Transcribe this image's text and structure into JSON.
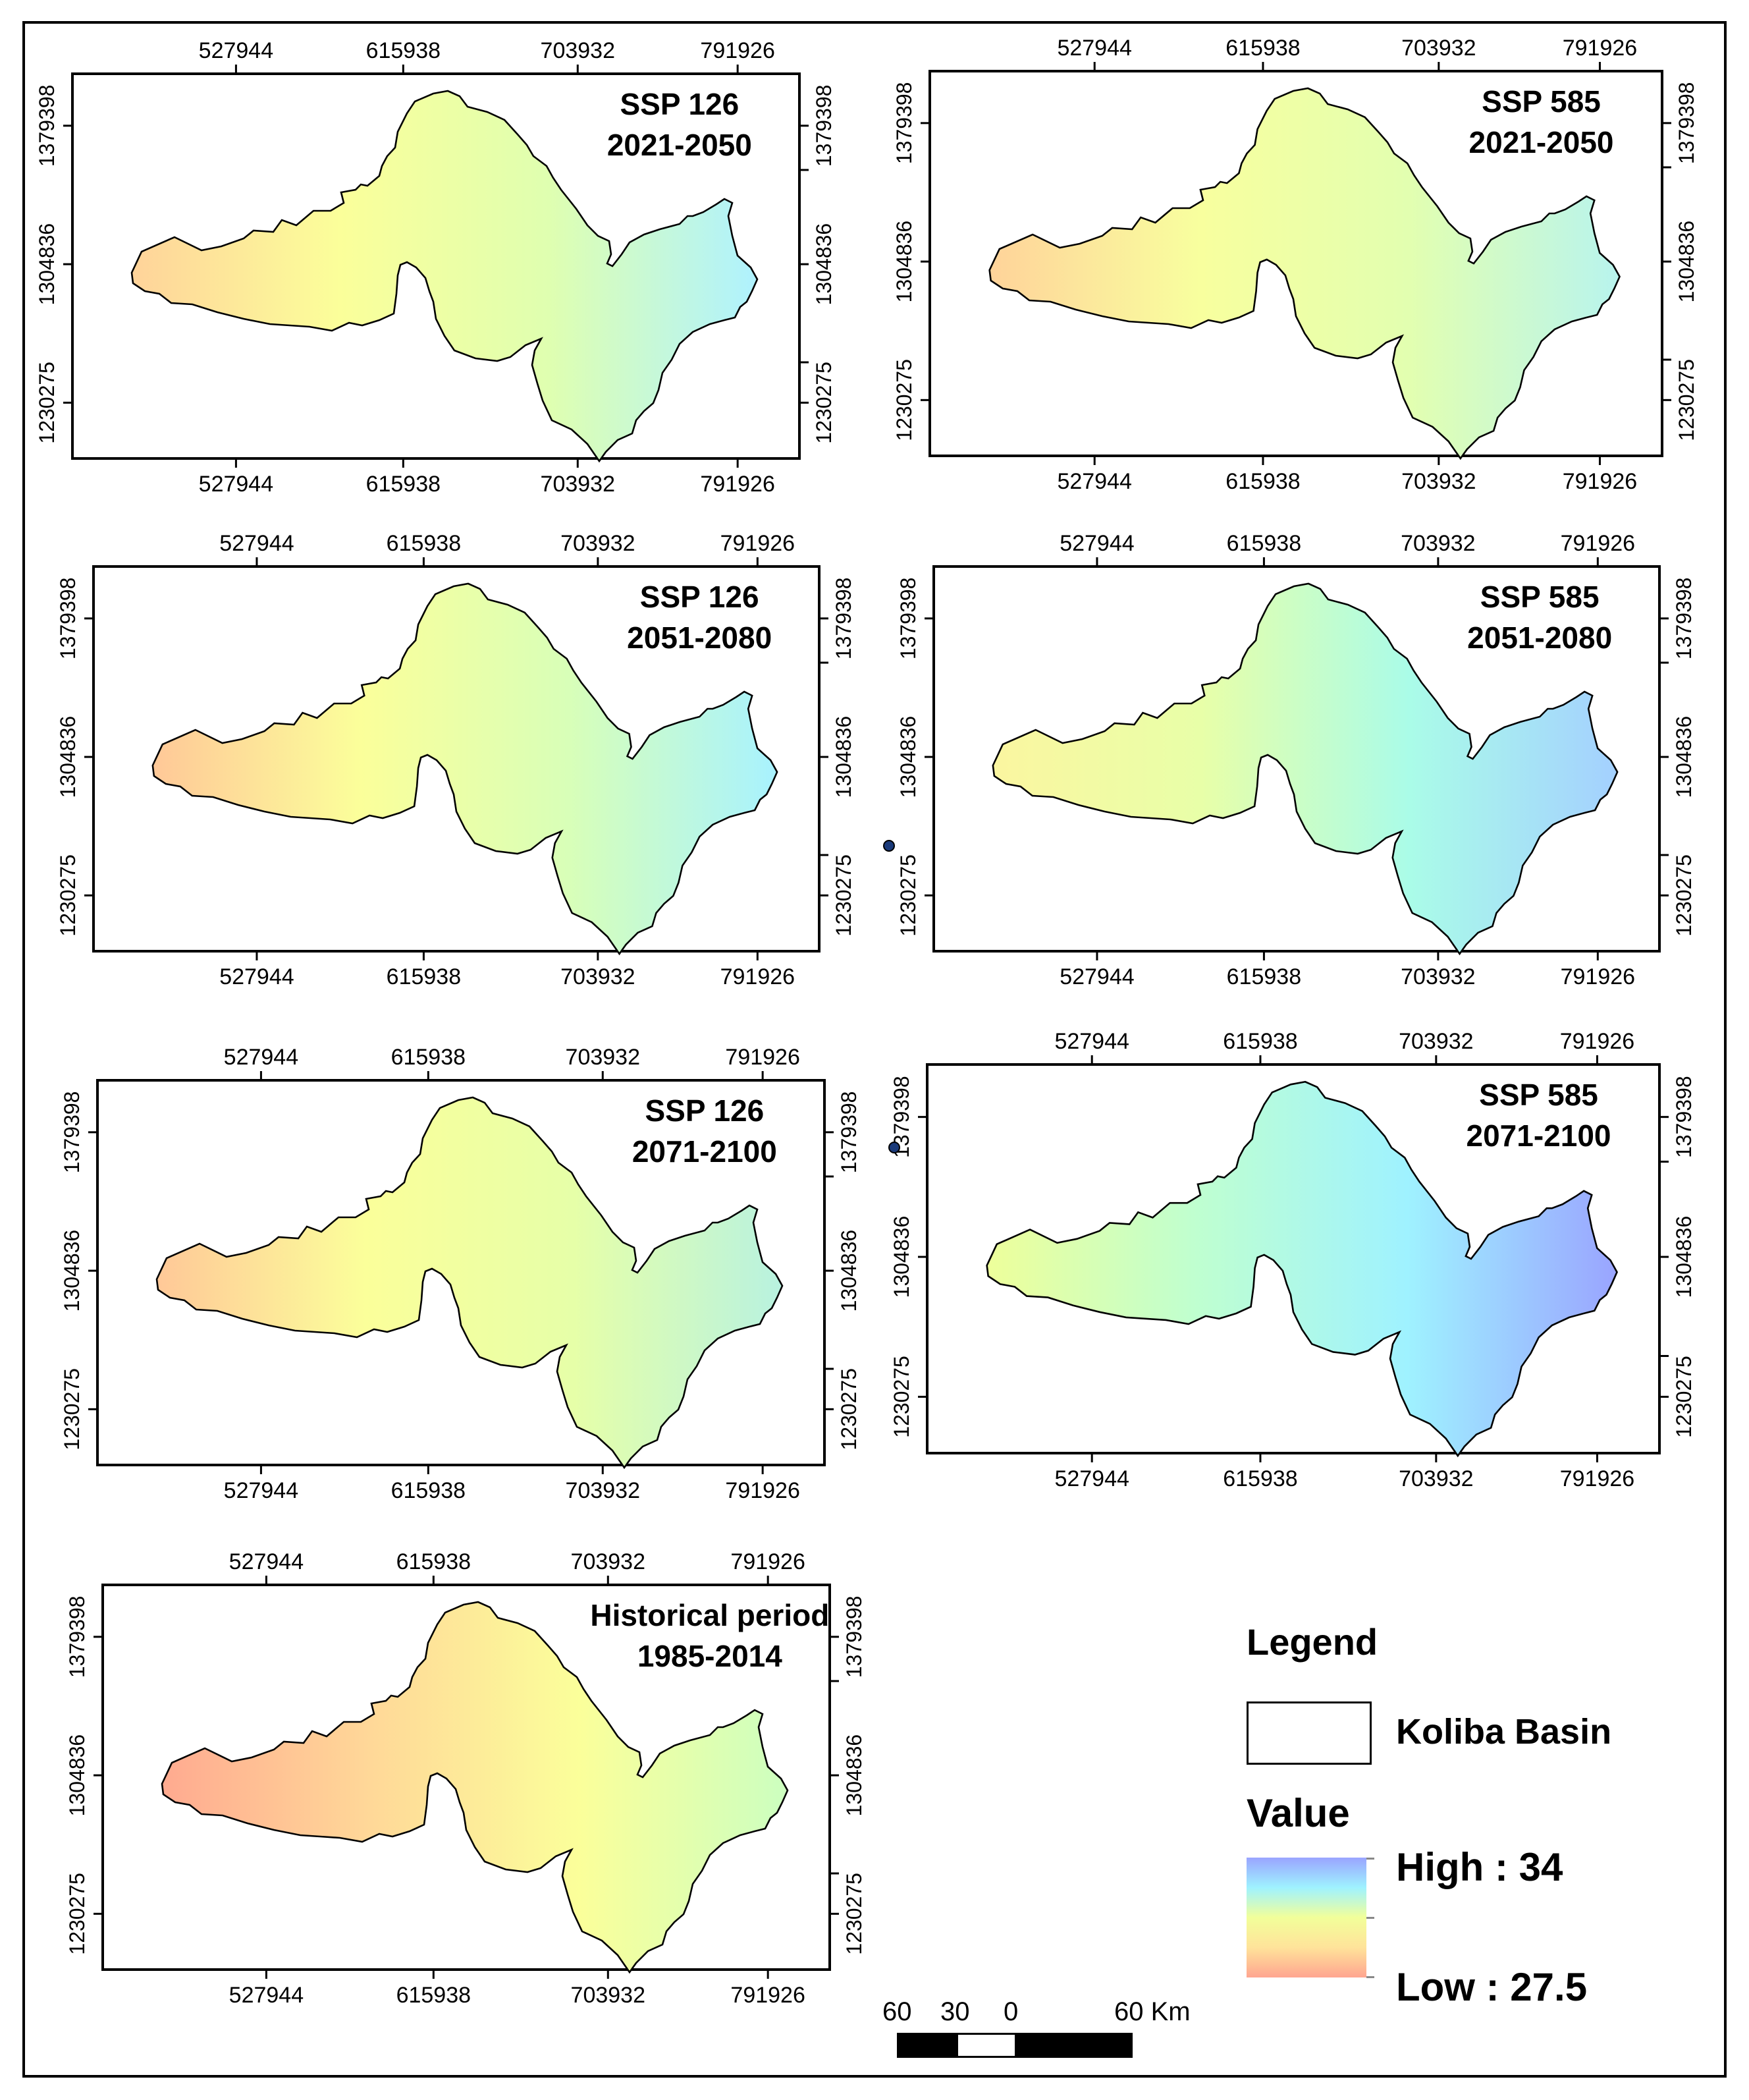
{
  "x_ticks": [
    "527944",
    "615938",
    "703932",
    "791926"
  ],
  "y_ticks": [
    "1379398",
    "1304836",
    "1230275"
  ],
  "panels": [
    {
      "scenario": "SSP 126",
      "period": "2021-2050",
      "stops": [
        "#ffd39a",
        "#fbff9a",
        "#dfffb0",
        "#aff2ff"
      ]
    },
    {
      "scenario": "SSP 585",
      "period": "2021-2050",
      "stops": [
        "#ffd39a",
        "#f8ff9e",
        "#e2ffb0",
        "#b8f4ee"
      ]
    },
    {
      "scenario": "SSP 126",
      "period": "2051-2080",
      "stops": [
        "#ffc898",
        "#fbff9a",
        "#d8ffb8",
        "#a8f2ff"
      ]
    },
    {
      "scenario": "SSP 585",
      "period": "2051-2080",
      "stops": [
        "#fbf6a0",
        "#e8ffa8",
        "#aafce8",
        "#a4d0ff"
      ]
    },
    {
      "scenario": "SSP 126",
      "period": "2071-2100",
      "stops": [
        "#ffc898",
        "#fbff9a",
        "#e6ffa8",
        "#b8f2e0"
      ]
    },
    {
      "scenario": "SSP 585",
      "period": "2071-2100",
      "stops": [
        "#eeff9a",
        "#bfffd0",
        "#9ff2ff",
        "#9aa4ff"
      ]
    },
    {
      "scenario": "Historical period",
      "period": "1985-2014",
      "stops": [
        "#ffaa90",
        "#ffd898",
        "#fbff9a",
        "#ccffc0"
      ]
    }
  ],
  "legend": {
    "title": "Legend",
    "basin_label": "Koliba Basin",
    "value_title": "Value",
    "high_label": "High : 34",
    "low_label": "Low : 27.5",
    "high_value": 34,
    "low_value": 27.5,
    "ramp_colors": [
      "#9aa4ff",
      "#9ff2ff",
      "#f2ff9a",
      "#ffe39a",
      "#ffa590"
    ]
  },
  "scale_bar": {
    "labels": [
      "60",
      "30",
      "0",
      "60 Km"
    ]
  }
}
